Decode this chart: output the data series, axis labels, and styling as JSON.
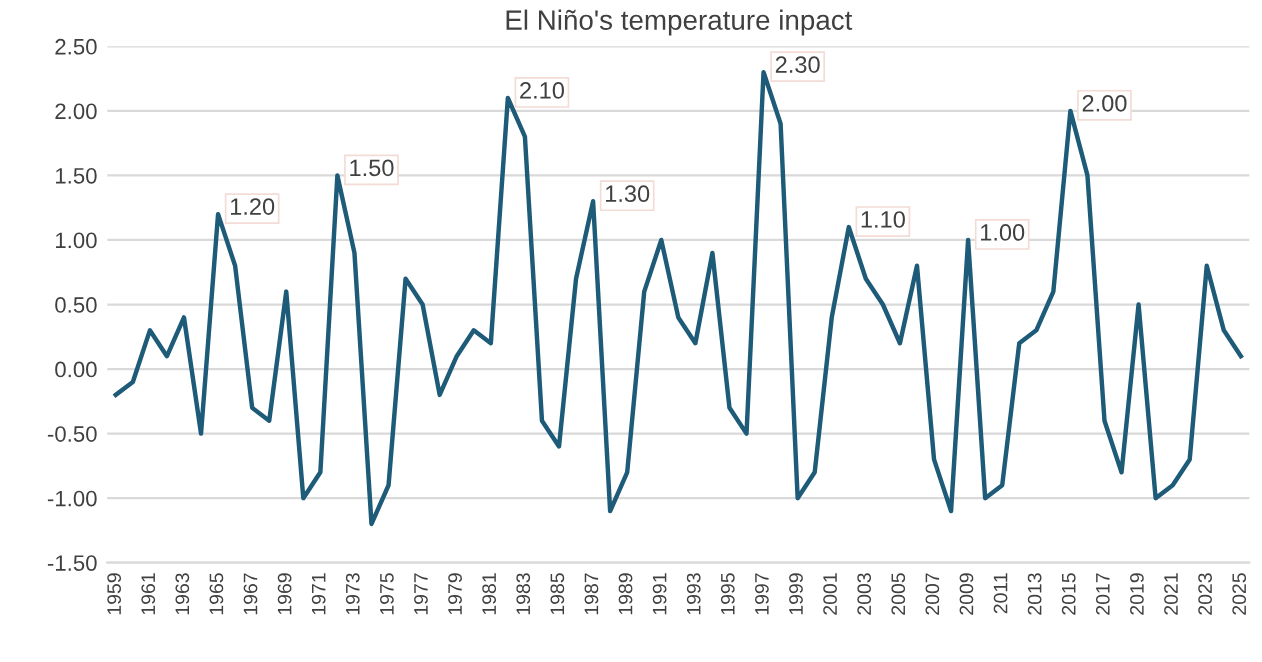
{
  "chart_data": {
    "type": "line",
    "title": "El Niño's temperature inpact",
    "categories": [
      "1959",
      null,
      "1961",
      null,
      "1963",
      null,
      "1965",
      null,
      "1967",
      null,
      "1969",
      null,
      "1971",
      null,
      "1973",
      null,
      "1975",
      null,
      "1977",
      null,
      "1979",
      null,
      "1981",
      null,
      "1983",
      null,
      "1985",
      null,
      "1987",
      null,
      "1989",
      null,
      "1991",
      null,
      "1993",
      null,
      "1995",
      null,
      "1997",
      null,
      "1999",
      null,
      "2001",
      null,
      "2003",
      null,
      "2005",
      null,
      "2007",
      null,
      "2009",
      null,
      "2011",
      null,
      "2013",
      null,
      "2015",
      null,
      "2017",
      null,
      "2019",
      null,
      "2021",
      null,
      "2023",
      null,
      "2025"
    ],
    "series": [
      {
        "color": "#1d5b79",
        "values": [
          -0.2,
          -0.1,
          0.3,
          0.1,
          0.4,
          -0.5,
          1.2,
          0.8,
          -0.3,
          -0.4,
          0.6,
          -1.0,
          -0.8,
          1.5,
          0.9,
          -1.2,
          -0.9,
          0.7,
          0.5,
          -0.2,
          0.1,
          0.3,
          0.2,
          2.1,
          1.8,
          -0.4,
          -0.6,
          0.7,
          1.3,
          -1.1,
          -0.8,
          0.6,
          1.0,
          0.4,
          0.2,
          0.9,
          -0.3,
          -0.5,
          2.3,
          1.9,
          -1.0,
          -0.8,
          0.4,
          1.1,
          0.7,
          0.5,
          0.2,
          0.8,
          -0.7,
          -1.1,
          1.0,
          -1.0,
          -0.9,
          0.2,
          0.3,
          0.6,
          2.0,
          1.5,
          -0.4,
          -0.8,
          0.5,
          -1.0,
          -0.9,
          -0.7,
          0.8,
          0.3,
          0.1
        ],
        "value_labels": [
          null,
          null,
          null,
          null,
          null,
          null,
          "1.20",
          null,
          null,
          null,
          null,
          null,
          null,
          "1.50",
          null,
          null,
          null,
          null,
          null,
          null,
          null,
          null,
          null,
          "2.10",
          null,
          null,
          null,
          null,
          "1.30",
          null,
          null,
          null,
          null,
          null,
          null,
          null,
          null,
          null,
          "2.30",
          null,
          null,
          null,
          null,
          "1.10",
          null,
          null,
          null,
          null,
          null,
          null,
          "1.00",
          null,
          null,
          null,
          null,
          null,
          "2.00",
          null,
          null,
          null,
          null,
          null,
          null,
          null,
          null,
          null,
          null
        ]
      }
    ],
    "ylim": [
      -1.5,
      2.5
    ],
    "yticks": [
      "-1.50",
      "-1.00",
      "-0.50",
      "0.00",
      "0.50",
      "1.00",
      "1.50",
      "2.00",
      "2.50"
    ],
    "grid": "y",
    "legend": false,
    "marker": "none",
    "line_style": "solid"
  }
}
